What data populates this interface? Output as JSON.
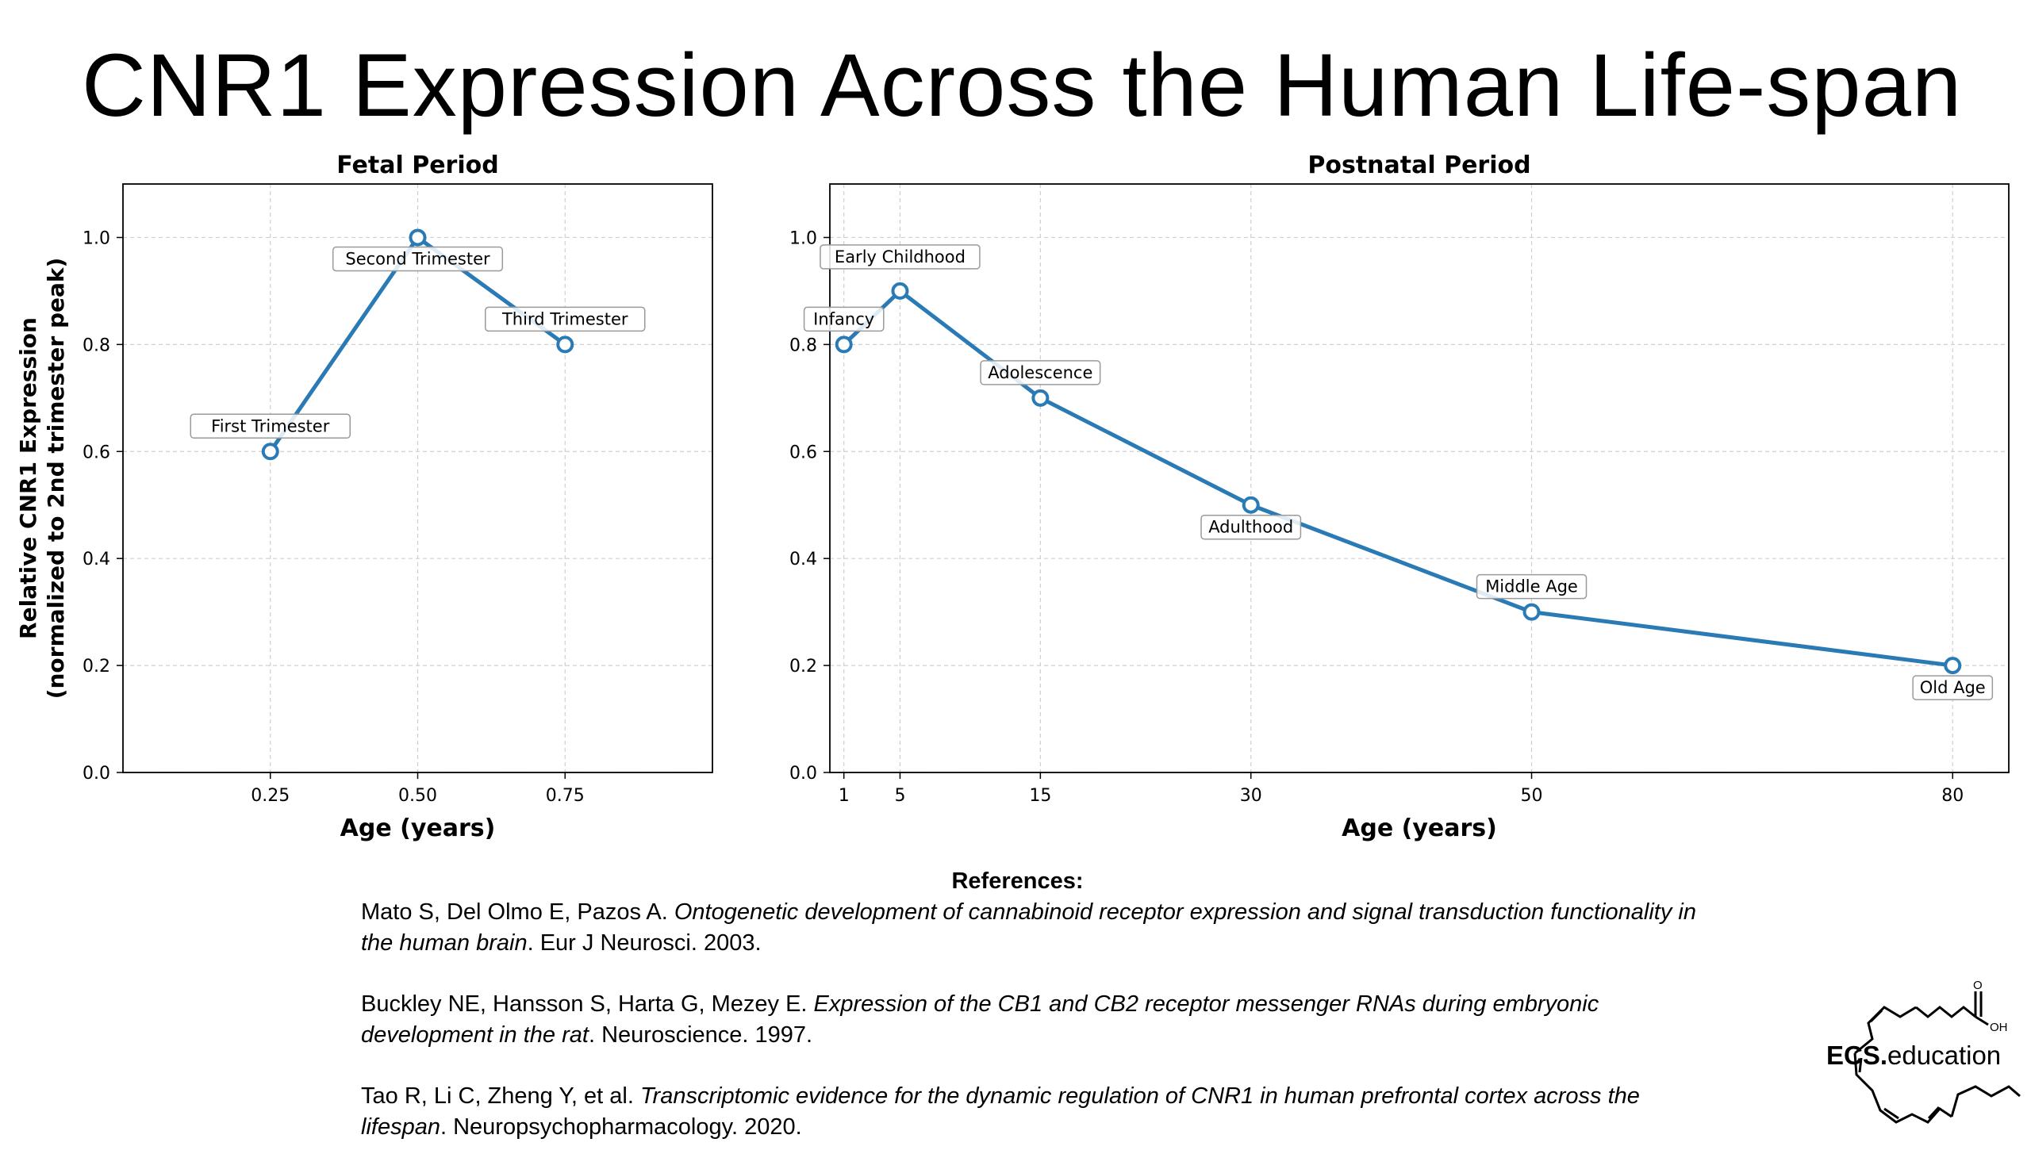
{
  "page": {
    "title": "CNR1 Expression Across the Human Life-span"
  },
  "chart_data": [
    {
      "type": "line",
      "title": "Fetal Period",
      "xlabel": "Age (years)",
      "ylabel": [
        "Relative CNR1 Expression",
        "(normalized to 2nd trimester peak)"
      ],
      "x": [
        0.25,
        0.5,
        0.75
      ],
      "xticks": [
        "0.25",
        "0.50",
        "0.75"
      ],
      "xlim": [
        0.0,
        1.0
      ],
      "ylim": [
        0.0,
        1.1
      ],
      "yticks": [
        "0.0",
        "0.2",
        "0.4",
        "0.6",
        "0.8",
        "1.0"
      ],
      "grid": true,
      "color": "#2a7ab5",
      "series": [
        {
          "values": [
            0.6,
            1.0,
            0.8
          ]
        }
      ],
      "annotations": [
        "First Trimester",
        "Second Trimester",
        "Third Trimester"
      ]
    },
    {
      "type": "line",
      "title": "Postnatal Period",
      "xlabel": "Age (years)",
      "x": [
        1,
        5,
        15,
        30,
        50,
        80
      ],
      "xticks": [
        "1",
        "5",
        "15",
        "30",
        "50",
        "80"
      ],
      "xlim": [
        0,
        84
      ],
      "ylim": [
        0.0,
        1.1
      ],
      "yticks": [
        "0.0",
        "0.2",
        "0.4",
        "0.6",
        "0.8",
        "1.0"
      ],
      "grid": true,
      "color": "#2a7ab5",
      "series": [
        {
          "values": [
            0.8,
            0.9,
            0.7,
            0.5,
            0.3,
            0.2
          ]
        }
      ],
      "annotations": [
        "Infancy",
        "Early Childhood",
        "Adolescence",
        "Adulthood",
        "Middle Age",
        "Old Age"
      ]
    }
  ],
  "references": {
    "heading": "References:",
    "items": [
      {
        "authors": "Mato S, Del Olmo E, Pazos A. ",
        "title": "Ontogenetic development of cannabinoid receptor expression and signal transduction functionality in the human brain",
        "source": ". Eur J Neurosci. 2003."
      },
      {
        "authors": "Buckley NE, Hansson S, Harta G, Mezey E. ",
        "title": "Expression of the CB1 and CB2 receptor messenger RNAs during embryonic development in the rat",
        "source": ". Neuroscience. 1997."
      },
      {
        "authors": "Tao R, Li C, Zheng Y, et al. ",
        "title": "Transcriptomic evidence for the dynamic regulation of CNR1 in human prefrontal cortex across the lifespan",
        "source": ". Neuropsychopharmacology. 2020."
      }
    ]
  },
  "logo": {
    "brand_bold": "ECS.",
    "brand_rest": "education",
    "atom_o": "O",
    "atom_oh": "OH"
  }
}
